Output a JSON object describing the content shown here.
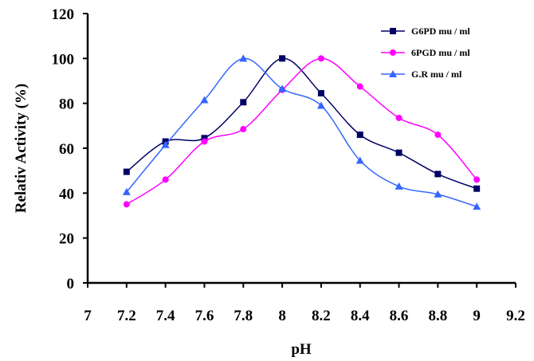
{
  "chart_data": {
    "type": "line",
    "title": "",
    "xlabel": "pH",
    "ylabel": "Relativ Activity (%)",
    "xlim": [
      7,
      9.2
    ],
    "ylim": [
      0,
      120
    ],
    "xticks": [
      "7",
      "7.2",
      "7.4",
      "7.6",
      "7.8",
      "8",
      "8.2",
      "8.4",
      "8.6",
      "8.8",
      "9",
      "9.2"
    ],
    "yticks": [
      "0",
      "20",
      "40",
      "60",
      "80",
      "100",
      "120"
    ],
    "x": [
      7.2,
      7.4,
      7.6,
      7.8,
      8.0,
      8.2,
      8.4,
      8.6,
      8.8,
      9.0
    ],
    "grid": false,
    "legend_position": "top-right",
    "series": [
      {
        "name": "G6PD mu / ml",
        "color": "#000066",
        "marker": "square",
        "values": [
          49.5,
          63,
          64.5,
          80.5,
          100,
          84.5,
          66,
          58,
          48.5,
          42
        ]
      },
      {
        "name": "6PGD mu / ml",
        "color": "#ff00ff",
        "marker": "circle",
        "values": [
          35,
          46,
          63,
          68.5,
          86,
          100,
          87.5,
          73.5,
          66,
          46
        ]
      },
      {
        "name": "G.R mu / ml",
        "color": "#3366ff",
        "marker": "triangle",
        "values": [
          40.5,
          61.5,
          81.5,
          100,
          86.5,
          79,
          54.5,
          43,
          39.5,
          34
        ]
      }
    ]
  }
}
